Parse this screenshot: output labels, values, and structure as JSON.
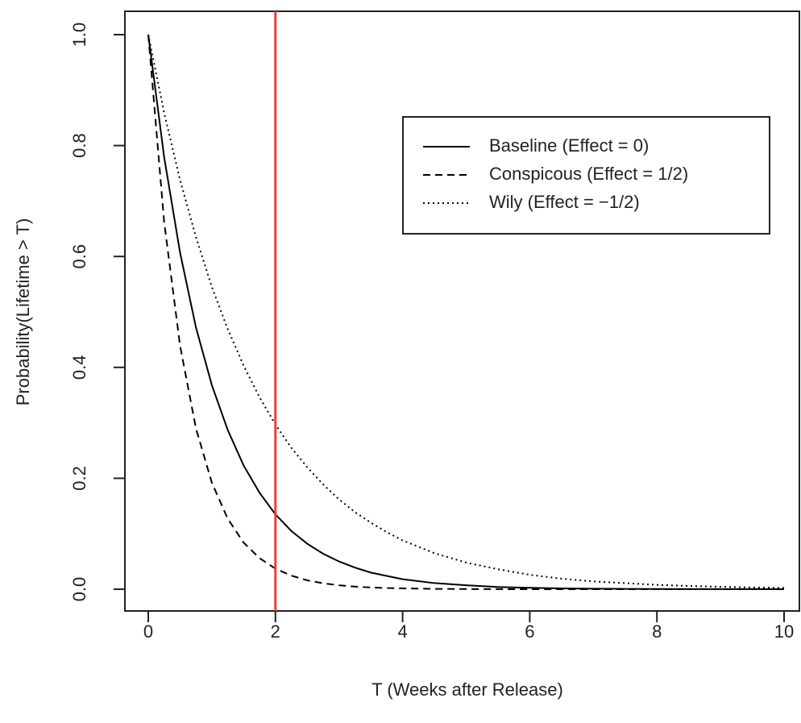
{
  "chart_data": {
    "type": "line",
    "xlabel": "T (Weeks after Release)",
    "ylabel": "Probability(Lifetime > T)",
    "x": [
      0,
      0.25,
      0.5,
      0.75,
      1,
      1.25,
      1.5,
      1.75,
      2,
      2.25,
      2.5,
      2.75,
      3,
      3.25,
      3.5,
      3.75,
      4,
      4.5,
      5,
      5.5,
      6,
      6.5,
      7,
      7.5,
      8,
      8.5,
      9,
      9.5,
      10
    ],
    "series": [
      {
        "name": "Baseline (Effect = 0)",
        "color": "#000000",
        "linestyle": "solid",
        "values": [
          1,
          0.779,
          0.607,
          0.472,
          0.368,
          0.287,
          0.223,
          0.174,
          0.135,
          0.105,
          0.082,
          0.064,
          0.05,
          0.039,
          0.03,
          0.024,
          0.018,
          0.011,
          0.007,
          0.004,
          0.0025,
          0.0015,
          0.0009,
          0.0006,
          0.0003,
          0.0002,
          0.0001,
          0.0001,
          5e-05
        ]
      },
      {
        "name": "Conspicous (Effect = 1/2)",
        "color": "#000000",
        "linestyle": "dashed",
        "values": [
          1,
          0.662,
          0.439,
          0.29,
          0.192,
          0.127,
          0.084,
          0.056,
          0.037,
          0.0245,
          0.016,
          0.0107,
          0.0071,
          0.0047,
          0.0031,
          0.0021,
          0.0014,
          0.0006,
          0.0003,
          0.0001,
          5e-05,
          0,
          0,
          0,
          0,
          0,
          0,
          0,
          0
        ]
      },
      {
        "name": "Wily (Effect = −1/2)",
        "color": "#000000",
        "linestyle": "dotted",
        "values": [
          1,
          0.859,
          0.738,
          0.635,
          0.545,
          0.469,
          0.403,
          0.346,
          0.297,
          0.255,
          0.22,
          0.189,
          0.162,
          0.139,
          0.12,
          0.103,
          0.088,
          0.065,
          0.048,
          0.036,
          0.026,
          0.019,
          0.014,
          0.011,
          0.0078,
          0.0058,
          0.0043,
          0.0031,
          0.0023
        ]
      }
    ],
    "vline": 2,
    "vline_color": "#e8403a",
    "xlim": [
      0,
      10
    ],
    "xticks": [
      0,
      2,
      4,
      6,
      8,
      10
    ],
    "ylim": [
      0,
      1
    ],
    "yticks": [
      {
        "value": 0,
        "label": "0.0"
      },
      {
        "value": 0.2,
        "label": "0.2"
      },
      {
        "value": 0.4,
        "label": "0.4"
      },
      {
        "value": 0.6,
        "label": "0.6"
      },
      {
        "value": 0.8,
        "label": "0.8"
      },
      {
        "value": 1,
        "label": "1.0"
      }
    ],
    "legend": "top-right"
  }
}
